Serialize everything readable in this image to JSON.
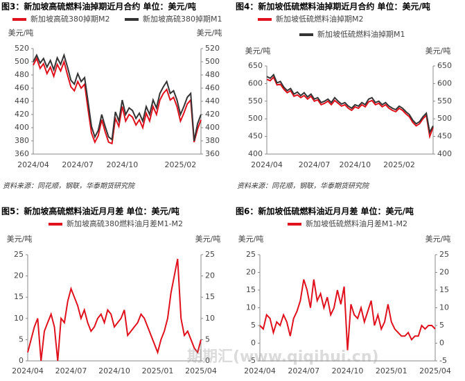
{
  "chart_data": [
    {
      "type": "line",
      "title": "图3：新加坡高硫燃料油掉期近月合约 单位：美元/吨",
      "y_label": "美元/吨",
      "source": "资料来源：同花顺，钢联，华泰期货研究院",
      "categories": [
        "2024/04",
        null,
        null,
        null,
        null,
        null,
        null,
        null,
        null,
        null,
        null,
        null,
        null,
        "2024/07",
        null,
        null,
        null,
        null,
        null,
        null,
        null,
        null,
        null,
        null,
        null,
        null,
        "2024/10",
        null,
        null,
        null,
        null,
        null,
        null,
        null,
        null,
        null,
        null,
        null,
        null,
        null,
        null,
        null,
        null,
        "2025/02",
        null,
        null,
        null,
        null,
        null,
        null
      ],
      "ylim": [
        360,
        520
      ],
      "yticks": [
        360,
        380,
        400,
        420,
        440,
        460,
        480,
        500,
        520
      ],
      "series": [
        {
          "name": "新加坡高硫380掉期M2",
          "color": "#e0101c",
          "values": [
            495,
            505,
            490,
            497,
            482,
            492,
            478,
            496,
            486,
            500,
            480,
            462,
            456,
            470,
            460,
            466,
            428,
            392,
            378,
            388,
            412,
            394,
            378,
            376,
            414,
            402,
            432,
            410,
            420,
            416,
            404,
            412,
            400,
            422,
            410,
            432,
            420,
            442,
            452,
            458,
            442,
            446,
            432,
            410,
            422,
            436,
            442,
            378,
            398,
            412
          ]
        },
        {
          "name": "新加坡高硫380掉期M1",
          "color": "#333333",
          "values": [
            500,
            510,
            498,
            505,
            492,
            502,
            488,
            506,
            496,
            510,
            492,
            472,
            466,
            482,
            470,
            476,
            440,
            402,
            386,
            396,
            420,
            402,
            386,
            382,
            424,
            410,
            442,
            420,
            430,
            426,
            414,
            422,
            410,
            432,
            420,
            442,
            430,
            452,
            462,
            470,
            452,
            456,
            442,
            420,
            432,
            446,
            452,
            380,
            406,
            420
          ]
        }
      ]
    },
    {
      "type": "line",
      "title": "图4：新加坡低硫燃料油掉期近月合约 单位：美元/吨",
      "y_label": "美元/吨",
      "source": "资料来源：同花顺，钢联，华泰期货研究院",
      "categories": [
        "2024/04",
        null,
        null,
        null,
        null,
        null,
        null,
        null,
        null,
        null,
        null,
        null,
        null,
        null,
        "2024/07",
        null,
        null,
        null,
        null,
        null,
        null,
        null,
        null,
        null,
        null,
        null,
        "2024/10",
        null,
        null,
        null,
        null,
        null,
        null,
        null,
        null,
        null,
        null,
        null,
        null,
        "2025/02",
        null,
        null,
        null,
        null,
        null,
        null,
        null,
        null,
        null,
        null
      ],
      "ylim": [
        400,
        650
      ],
      "yticks": [
        400,
        450,
        500,
        550,
        600,
        650
      ],
      "series": [
        {
          "name": "新加坡低硫燃料油掉期M2",
          "color": "#e0101c",
          "values": [
            612,
            608,
            618,
            596,
            598,
            584,
            574,
            580,
            564,
            568,
            560,
            566,
            556,
            564,
            550,
            554,
            540,
            544,
            550,
            540,
            552,
            544,
            536,
            540,
            530,
            524,
            534,
            530,
            540,
            534,
            548,
            552,
            540,
            544,
            534,
            540,
            530,
            524,
            520,
            530,
            524,
            514,
            506,
            490,
            480,
            486,
            500,
            510,
            450,
            476
          ]
        },
        {
          "name": "新加坡低硫燃料油掉期M1",
          "color": "#333333",
          "values": [
            620,
            615,
            625,
            602,
            606,
            590,
            580,
            586,
            570,
            576,
            566,
            574,
            562,
            570,
            556,
            560,
            546,
            550,
            556,
            546,
            560,
            550,
            542,
            546,
            536,
            530,
            540,
            536,
            546,
            540,
            556,
            560,
            546,
            550,
            540,
            546,
            536,
            530,
            526,
            536,
            530,
            520,
            512,
            496,
            486,
            492,
            506,
            516,
            462,
            480
          ]
        }
      ]
    },
    {
      "type": "line",
      "title": "图5：新加坡高硫燃料油近月月差 单位：美元/吨",
      "y_label": "美元/吨",
      "categories": [
        "2024/04",
        null,
        null,
        null,
        null,
        null,
        null,
        null,
        null,
        null,
        null,
        null,
        null,
        "2024/07",
        null,
        null,
        null,
        null,
        null,
        null,
        null,
        null,
        null,
        null,
        null,
        null,
        "2024/10",
        null,
        null,
        null,
        null,
        null,
        null,
        null,
        null,
        null,
        null,
        null,
        null,
        "2025/01",
        null,
        null,
        null,
        null,
        null,
        null,
        null,
        null,
        null,
        null,
        null,
        null,
        "2025/04"
      ],
      "ylim": [
        0,
        25
      ],
      "yticks": [
        0,
        5,
        10,
        15,
        20,
        25
      ],
      "series": [
        {
          "name": "新加坡高硫380燃料油月差M1-M2",
          "color": "#e0101c",
          "values": [
            2,
            5,
            8,
            10,
            0,
            7,
            9,
            11,
            8,
            0,
            10,
            9,
            14,
            17,
            15,
            13,
            10,
            12,
            9,
            7,
            8,
            10,
            11,
            9,
            12,
            11,
            8,
            9,
            10,
            12,
            6,
            7,
            8,
            9,
            11,
            10,
            8,
            6,
            4,
            2,
            5,
            7,
            10,
            16,
            20,
            24,
            10,
            6,
            7,
            5,
            3,
            2,
            5
          ]
        }
      ]
    },
    {
      "type": "line",
      "title": "图6：新加坡低硫燃料油近月月差 单位：美元/吨",
      "y_label": "美元/吨",
      "watermark": "期期汇(www.qiqihui.cn)",
      "categories": [
        "2024/04",
        null,
        null,
        null,
        null,
        null,
        null,
        null,
        null,
        null,
        null,
        null,
        null,
        "2024/07",
        null,
        null,
        null,
        null,
        null,
        null,
        null,
        null,
        null,
        null,
        null,
        null,
        "2024/10",
        null,
        null,
        null,
        null,
        null,
        null,
        null,
        null,
        null,
        null,
        null,
        null,
        "2025/01",
        null,
        null,
        null,
        null,
        null,
        null,
        null,
        null,
        null,
        null,
        null,
        null,
        "2025/04"
      ],
      "ylim": [
        -5,
        25
      ],
      "yticks": [
        -5,
        0,
        5,
        10,
        15,
        20,
        25
      ],
      "series": [
        {
          "name": "新加坡低硫燃料油月差M1-M2",
          "color": "#e0101c",
          "values": [
            5,
            4,
            8,
            7,
            3,
            6,
            5,
            8,
            6,
            2,
            7,
            9,
            12,
            18,
            15,
            10,
            18,
            12,
            14,
            10,
            13,
            8,
            10,
            15,
            11,
            16,
            -2,
            11,
            8,
            7,
            10,
            6,
            9,
            12,
            5,
            8,
            4,
            6,
            11,
            6,
            4,
            3,
            2,
            2,
            3,
            1,
            2,
            2,
            5,
            4,
            5,
            5,
            4
          ]
        }
      ]
    }
  ]
}
